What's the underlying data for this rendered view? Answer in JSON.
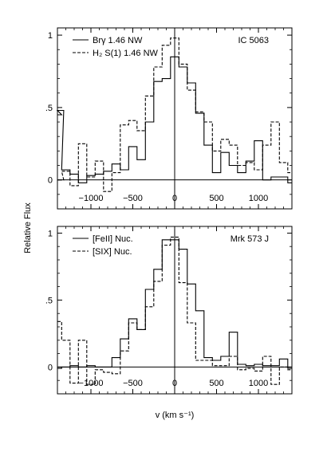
{
  "ylabel": "Relative Flux",
  "xlabel": "v (km s⁻¹)",
  "chart_data": [
    {
      "type": "line",
      "step": true,
      "label": "IC 5063",
      "xlim": [
        -1400,
        1400
      ],
      "ylim": [
        -0.2,
        1.05
      ],
      "xticks": [
        -1000,
        -500,
        0,
        500,
        1000
      ],
      "xticklabels": [
        "−1000",
        "−500",
        "0",
        "500",
        "1000"
      ],
      "yticks": [
        0,
        0.5,
        1
      ],
      "yticklabels": [
        "0",
        ".5",
        "1"
      ],
      "legend": "top-left",
      "series": [
        {
          "name": "Brγ 1.46 NW",
          "style": "solid",
          "x": [
            -1400,
            -1375,
            -1300,
            -1200,
            -1100,
            -1000,
            -900,
            -800,
            -700,
            -600,
            -500,
            -400,
            -300,
            -200,
            -100,
            0,
            100,
            200,
            300,
            400,
            500,
            600,
            700,
            800,
            900,
            1000,
            1100,
            1200,
            1300,
            1400
          ],
          "y": [
            0.45,
            0.48,
            0.07,
            0.04,
            -0.02,
            0.03,
            0.04,
            0.06,
            0.11,
            0.07,
            0.23,
            0.14,
            0.4,
            0.68,
            0.7,
            0.85,
            0.78,
            0.67,
            0.46,
            0.24,
            0.05,
            0.19,
            0.1,
            0.05,
            0.13,
            0.27,
            0.0,
            0.02,
            0.02,
            -0.02
          ]
        },
        {
          "name": "H₂ S(1) 1.46 NW",
          "style": "dashed",
          "x": [
            -1400,
            -1375,
            -1300,
            -1200,
            -1100,
            -1000,
            -900,
            -800,
            -700,
            -600,
            -500,
            -400,
            -300,
            -200,
            -100,
            0,
            100,
            200,
            300,
            400,
            500,
            600,
            700,
            800,
            900,
            1000,
            1100,
            1200,
            1300,
            1400
          ],
          "y": [
            0.0,
            0.0,
            0.06,
            -0.04,
            0.25,
            0.02,
            0.13,
            -0.08,
            0.05,
            0.38,
            0.41,
            0.34,
            0.58,
            0.78,
            0.93,
            0.98,
            0.8,
            0.62,
            0.47,
            0.4,
            0.2,
            0.28,
            0.24,
            0.1,
            0.12,
            0.07,
            0.24,
            0.4,
            0.12,
            0.05
          ]
        }
      ]
    },
    {
      "type": "line",
      "step": true,
      "label": "Mrk 573 J",
      "xlim": [
        -1400,
        1400
      ],
      "ylim": [
        -0.2,
        1.05
      ],
      "xticks": [
        -1000,
        -500,
        0,
        500,
        1000
      ],
      "xticklabels": [
        "−1000",
        "−500",
        "0",
        "500",
        "1000"
      ],
      "yticks": [
        0,
        0.5,
        1
      ],
      "yticklabels": [
        "0",
        ".5",
        "1"
      ],
      "legend": "top-left",
      "series": [
        {
          "name": "[FeII] Nuc.",
          "style": "solid",
          "x": [
            -1400,
            -1300,
            -1200,
            -1100,
            -1000,
            -900,
            -800,
            -700,
            -600,
            -500,
            -400,
            -300,
            -200,
            -100,
            0,
            100,
            200,
            300,
            400,
            500,
            600,
            700,
            800,
            900,
            1000,
            1100,
            1200,
            1300,
            1400
          ],
          "y": [
            -0.01,
            0.0,
            0.01,
            0.0,
            0.01,
            0.0,
            0.0,
            0.07,
            0.21,
            0.36,
            0.28,
            0.58,
            0.73,
            0.95,
            0.95,
            0.88,
            0.62,
            0.42,
            0.07,
            0.05,
            0.08,
            0.26,
            0.02,
            0.01,
            0.02,
            0.01,
            0.01,
            0.06,
            -0.01
          ]
        },
        {
          "name": "[SIX] Nuc.",
          "style": "dashed",
          "x": [
            -1400,
            -1300,
            -1200,
            -1100,
            -1000,
            -900,
            -800,
            -700,
            -600,
            -500,
            -400,
            -300,
            -200,
            -100,
            0,
            100,
            200,
            300,
            400,
            500,
            600,
            700,
            800,
            900,
            1000,
            1100,
            1200,
            1300,
            1400
          ],
          "y": [
            0.34,
            0.2,
            -0.12,
            0.2,
            -0.13,
            -0.02,
            -0.04,
            -0.05,
            0.12,
            0.33,
            0.28,
            0.45,
            0.64,
            0.91,
            0.97,
            0.63,
            0.33,
            0.05,
            0.05,
            0.01,
            0.01,
            0.08,
            -0.02,
            -0.01,
            -0.03,
            0.08,
            -0.13,
            0.0,
            -0.02
          ]
        }
      ]
    }
  ]
}
